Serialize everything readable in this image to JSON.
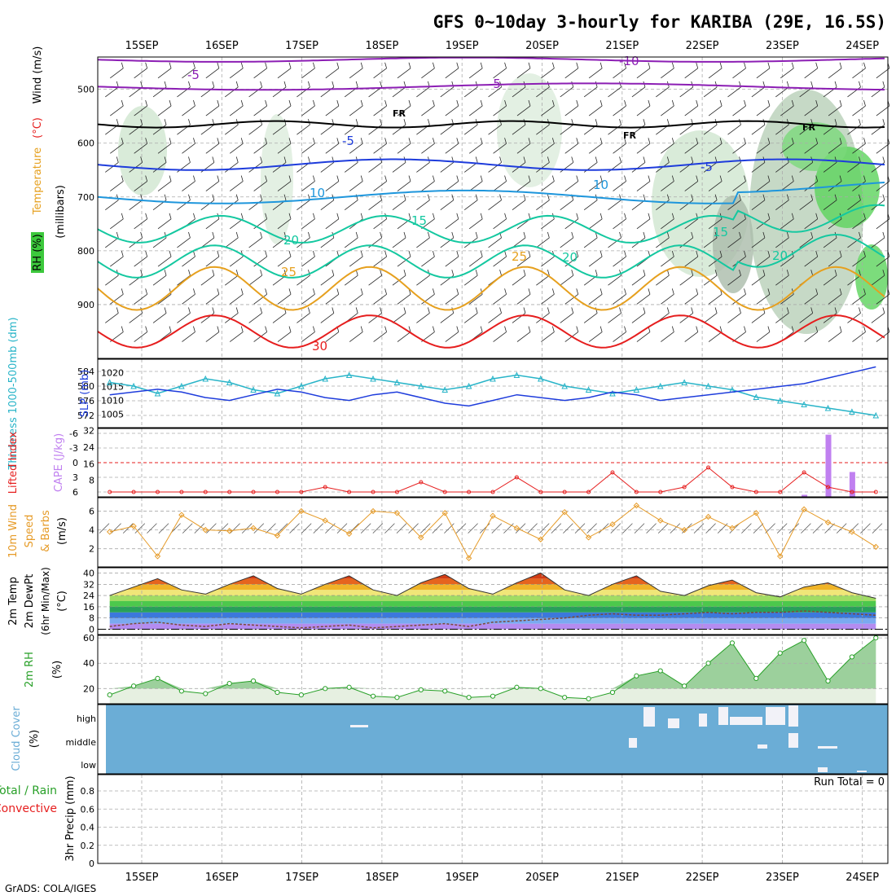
{
  "title": "GFS 0~10day 3-hourly for KARIBA (29E, 16.5S)",
  "footer": "GrADS: COLA/IGES",
  "run_total": "Run Total = 0",
  "dates": [
    "15SEP",
    "16SEP",
    "17SEP",
    "18SEP",
    "19SEP",
    "20SEP",
    "21SEP",
    "22SEP",
    "23SEP",
    "24SEP"
  ],
  "colors": {
    "purple": "#8c1eb4",
    "blue": "#1e3cdc",
    "lightblue": "#1e96dc",
    "teal": "#14c8a0",
    "orange": "#e6a01e",
    "red": "#e61e1e",
    "cyan": "#28b4c8",
    "rh_green": "#50c850",
    "cloud": "#6badd6",
    "wind10": "#e69b28"
  },
  "chart_data": [
    {
      "type": "contour",
      "panel": "upper-air cross-section",
      "ylabel_parts": [
        "RH (%)",
        "Temperature",
        "(°C)",
        "Wind (m/s)"
      ],
      "yaxis_label": "(millibars)",
      "yticks": [
        500,
        600,
        700,
        800,
        900
      ],
      "ylim": [
        1000,
        440
      ],
      "contour_labels": [
        {
          "text": "-5",
          "series": "purple"
        },
        {
          "text": "-10",
          "series": "purple"
        },
        {
          "text": "-5",
          "series": "purple"
        },
        {
          "text": "FR",
          "series": "freezing"
        },
        {
          "text": "FR",
          "series": "freezing"
        },
        {
          "text": "FR",
          "series": "freezing"
        },
        {
          "text": "-5",
          "series": "blue"
        },
        {
          "text": "-5",
          "series": "blue"
        },
        {
          "text": "10",
          "series": "lightblue"
        },
        {
          "text": "10",
          "series": "lightblue"
        },
        {
          "text": "15",
          "series": "teal"
        },
        {
          "text": "15",
          "series": "teal"
        },
        {
          "text": "20",
          "series": "teal"
        },
        {
          "text": "20",
          "series": "teal"
        },
        {
          "text": "20",
          "series": "teal"
        },
        {
          "text": "25",
          "series": "orange"
        },
        {
          "text": "25",
          "series": "orange"
        },
        {
          "text": "30",
          "series": "red"
        }
      ]
    },
    {
      "type": "line",
      "panel": "thickness / slp",
      "ylabel_left": "Thickness 1000-500mb (dm)",
      "ylabel_right": "SLP (mb)",
      "yticks_left": [
        572,
        576,
        580,
        584
      ],
      "yticks_right": [
        1005,
        1010,
        1015,
        1020
      ],
      "series": [
        {
          "name": "Thickness",
          "values": [
            581,
            580,
            578,
            580,
            582,
            581,
            579,
            578,
            580,
            582,
            583,
            582,
            581,
            580,
            579,
            580,
            582,
            583,
            582,
            580,
            579,
            578,
            579,
            580,
            581,
            580,
            579,
            577,
            576,
            575,
            574,
            573,
            572
          ]
        },
        {
          "name": "SLP",
          "values": [
            1012,
            1013,
            1014,
            1013,
            1011,
            1010,
            1012,
            1014,
            1013,
            1011,
            1010,
            1012,
            1013,
            1011,
            1009,
            1008,
            1010,
            1012,
            1011,
            1010,
            1011,
            1013,
            1012,
            1010,
            1011,
            1012,
            1013,
            1014,
            1015,
            1016,
            1018,
            1020,
            1022
          ]
        }
      ]
    },
    {
      "type": "line+bar",
      "panel": "stability",
      "ylabel_left": "Lifted Index",
      "ylabel_right": "CAPE (J/kg)",
      "yticks_left": [
        "-6",
        "-3",
        "0",
        "3",
        "6"
      ],
      "yticks_right": [
        8,
        16,
        24,
        32
      ],
      "series": [
        {
          "name": "Lifted Index",
          "values": [
            6,
            6,
            6,
            6,
            6,
            6,
            6,
            6,
            6,
            5,
            6,
            6,
            6,
            4,
            6,
            6,
            6,
            3,
            6,
            6,
            6,
            2,
            6,
            6,
            5,
            1,
            5,
            6,
            6,
            2,
            5,
            6,
            6
          ]
        },
        {
          "name": "CAPE",
          "values": [
            0,
            0,
            0,
            0,
            0,
            0,
            0,
            0,
            0,
            0,
            0,
            0,
            0,
            0,
            0,
            0,
            0,
            0,
            0,
            0,
            0,
            0,
            0,
            0,
            0,
            0,
            0,
            0,
            0,
            1,
            30,
            12,
            0
          ]
        }
      ]
    },
    {
      "type": "line",
      "panel": "10m wind",
      "ylabel": "10m Wind Speed & Barbs (m/s)",
      "yticks": [
        2,
        4,
        6
      ],
      "series": [
        {
          "name": "10m Wind Speed",
          "values": [
            3.8,
            4.4,
            1.2,
            5.6,
            4.0,
            3.9,
            4.2,
            3.4,
            6.0,
            5.0,
            3.6,
            6.0,
            5.8,
            3.2,
            5.8,
            1.0,
            5.5,
            4.2,
            3.0,
            5.9,
            3.2,
            4.6,
            6.6,
            5.0,
            4.0,
            5.4,
            4.2,
            5.8,
            1.2,
            6.2,
            4.8,
            3.8,
            2.2
          ]
        }
      ]
    },
    {
      "type": "area",
      "panel": "2m temperature",
      "ylabel": "2m Temp 2m DewPt (6hr Min/Max) (°C)",
      "yticks": [
        0,
        8,
        16,
        24,
        32,
        40
      ],
      "series": [
        {
          "name": "2m Temp",
          "values": [
            24,
            30,
            36,
            28,
            25,
            32,
            38,
            29,
            25,
            32,
            38,
            28,
            24,
            33,
            39,
            29,
            25,
            33,
            40,
            28,
            24,
            32,
            38,
            27,
            24,
            31,
            35,
            26,
            23,
            30,
            33,
            26,
            22
          ]
        },
        {
          "name": "2m DewPt",
          "values": [
            2,
            4,
            5,
            3,
            2,
            4,
            3,
            2,
            1,
            2,
            3,
            1,
            2,
            3,
            4,
            2,
            5,
            6,
            7,
            8,
            10,
            11,
            10,
            10,
            11,
            12,
            11,
            12,
            12,
            13,
            12,
            11,
            10
          ]
        }
      ]
    },
    {
      "type": "area",
      "panel": "2m relative humidity",
      "ylabel": "2m RH (%)",
      "yticks": [
        20,
        40,
        60
      ],
      "series": [
        {
          "name": "2m RH",
          "values": [
            15,
            22,
            28,
            18,
            16,
            24,
            26,
            17,
            15,
            20,
            21,
            14,
            13,
            19,
            18,
            13,
            14,
            21,
            20,
            13,
            12,
            17,
            30,
            34,
            22,
            40,
            56,
            28,
            48,
            58,
            26,
            45,
            60
          ]
        }
      ]
    },
    {
      "type": "heatmap",
      "panel": "cloud cover",
      "ylabel": "Cloud Cover (%)",
      "levels": [
        "high",
        "middle",
        "low"
      ]
    },
    {
      "type": "bar",
      "panel": "precipitation",
      "ylabel_left": "Total / Rain",
      "ylabel_left2": "Convective",
      "ylabel": "3hr Precip (mm)",
      "yticks": [
        0,
        0.2,
        0.4,
        0.6,
        0.8
      ],
      "values": []
    }
  ]
}
